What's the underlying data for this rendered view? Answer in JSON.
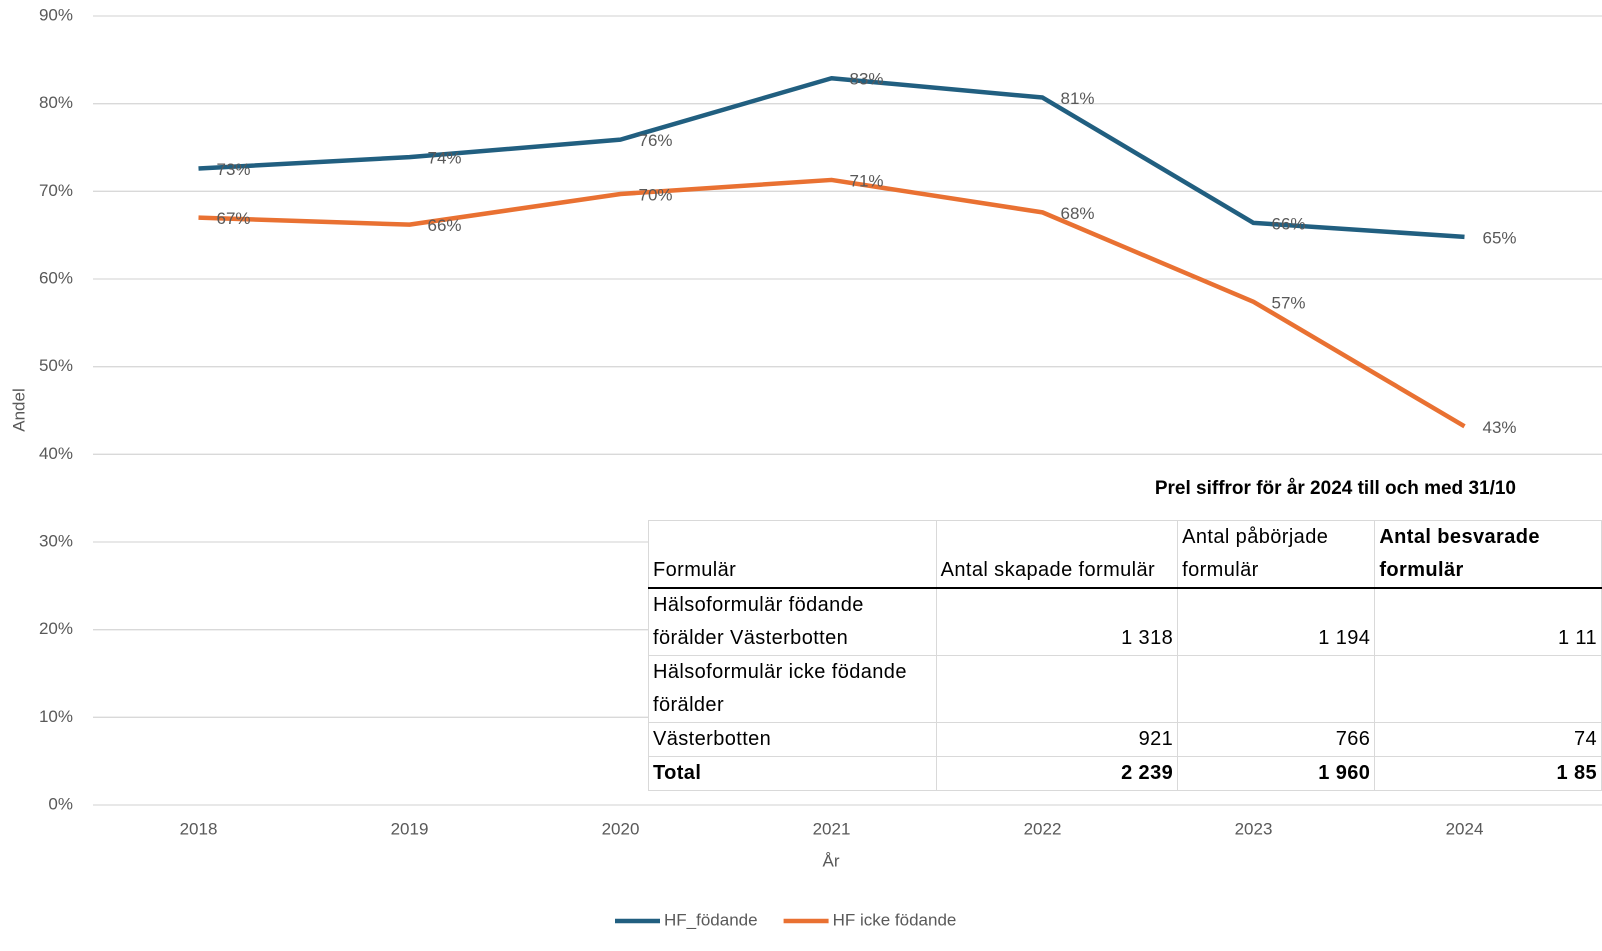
{
  "chart_data": {
    "type": "line",
    "categories": [
      "2018",
      "2019",
      "2020",
      "2021",
      "2022",
      "2023",
      "2024"
    ],
    "series": [
      {
        "name": "HF_födande",
        "color": "#215f80",
        "values": [
          72.6,
          73.9,
          75.9,
          82.9,
          80.7,
          66.4,
          64.8
        ],
        "value_labels": [
          "73%",
          "74%",
          "76%",
          "83%",
          "81%",
          "66%",
          "65%"
        ]
      },
      {
        "name": "HF icke födande",
        "color": "#e97132",
        "values": [
          67.0,
          66.2,
          69.7,
          71.3,
          67.6,
          57.4,
          43.2
        ],
        "value_labels": [
          "67%",
          "66%",
          "70%",
          "71%",
          "68%",
          "57%",
          "43%"
        ]
      }
    ],
    "ylim": [
      0,
      90
    ],
    "yticks": [
      {
        "value": 0,
        "label": "0%"
      },
      {
        "value": 10,
        "label": "10%"
      },
      {
        "value": 20,
        "label": "20%"
      },
      {
        "value": 30,
        "label": "30%"
      },
      {
        "value": 40,
        "label": "40%"
      },
      {
        "value": 50,
        "label": "50%"
      },
      {
        "value": 60,
        "label": "60%"
      },
      {
        "value": 70,
        "label": "70%"
      },
      {
        "value": 80,
        "label": "80%"
      },
      {
        "value": 90,
        "label": "90%"
      }
    ],
    "ylabel": "Andel",
    "xlabel": "År",
    "grid": true,
    "legend": "bottom"
  },
  "table": {
    "title": "Prel siffror för år 2024 till och med 31/10",
    "header": [
      "Formulär",
      "Antal skapade formulär",
      "Antal påbörjade formulär",
      "Antal besvarade formulär"
    ],
    "rows": [
      [
        "Hälsoformulär födande förälder Västerbotten",
        "1 318",
        "1 194",
        "1 11"
      ],
      [
        "Hälsoformulär icke födande förälder"
      ],
      [
        "Västerbotten",
        "921",
        "766",
        "74"
      ],
      [
        "Total",
        "2 239",
        "1 960",
        "1 85"
      ]
    ]
  }
}
